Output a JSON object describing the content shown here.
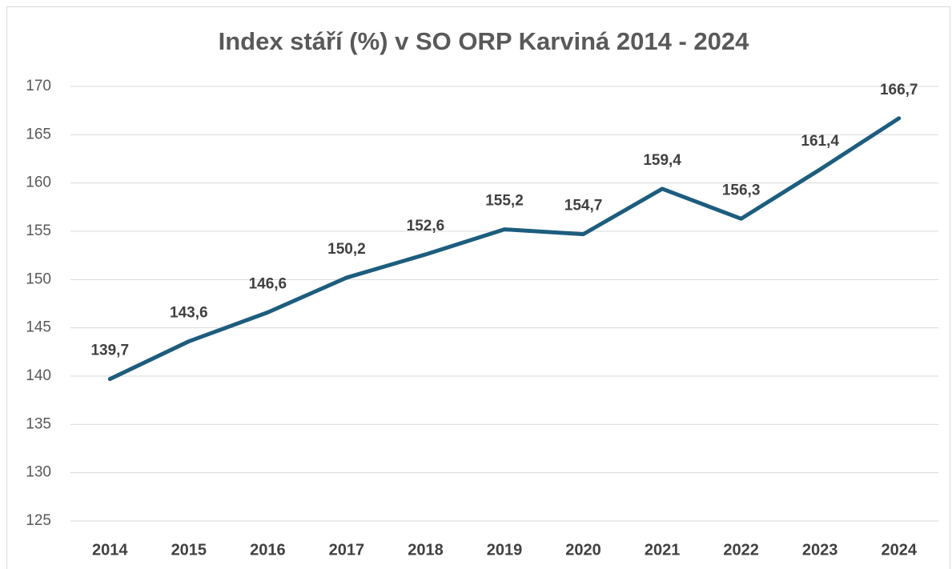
{
  "chart_data": {
    "type": "line",
    "title": "Index stáří (%) v SO ORP Karviná 2014 - 2024",
    "categories": [
      "2014",
      "2015",
      "2016",
      "2017",
      "2018",
      "2019",
      "2020",
      "2021",
      "2022",
      "2023",
      "2024"
    ],
    "values": [
      139.7,
      143.6,
      146.6,
      150.2,
      152.6,
      155.2,
      154.7,
      159.4,
      156.3,
      161.4,
      166.7
    ],
    "value_labels": [
      "139,7",
      "143,6",
      "146,6",
      "150,2",
      "152,6",
      "155,2",
      "154,7",
      "159,4",
      "156,3",
      "161,4",
      "166,7"
    ],
    "color": "#1d5d7e",
    "ylim": [
      125,
      170
    ],
    "yticks": [
      125,
      130,
      135,
      140,
      145,
      150,
      155,
      160,
      165,
      170
    ],
    "grid": true
  }
}
